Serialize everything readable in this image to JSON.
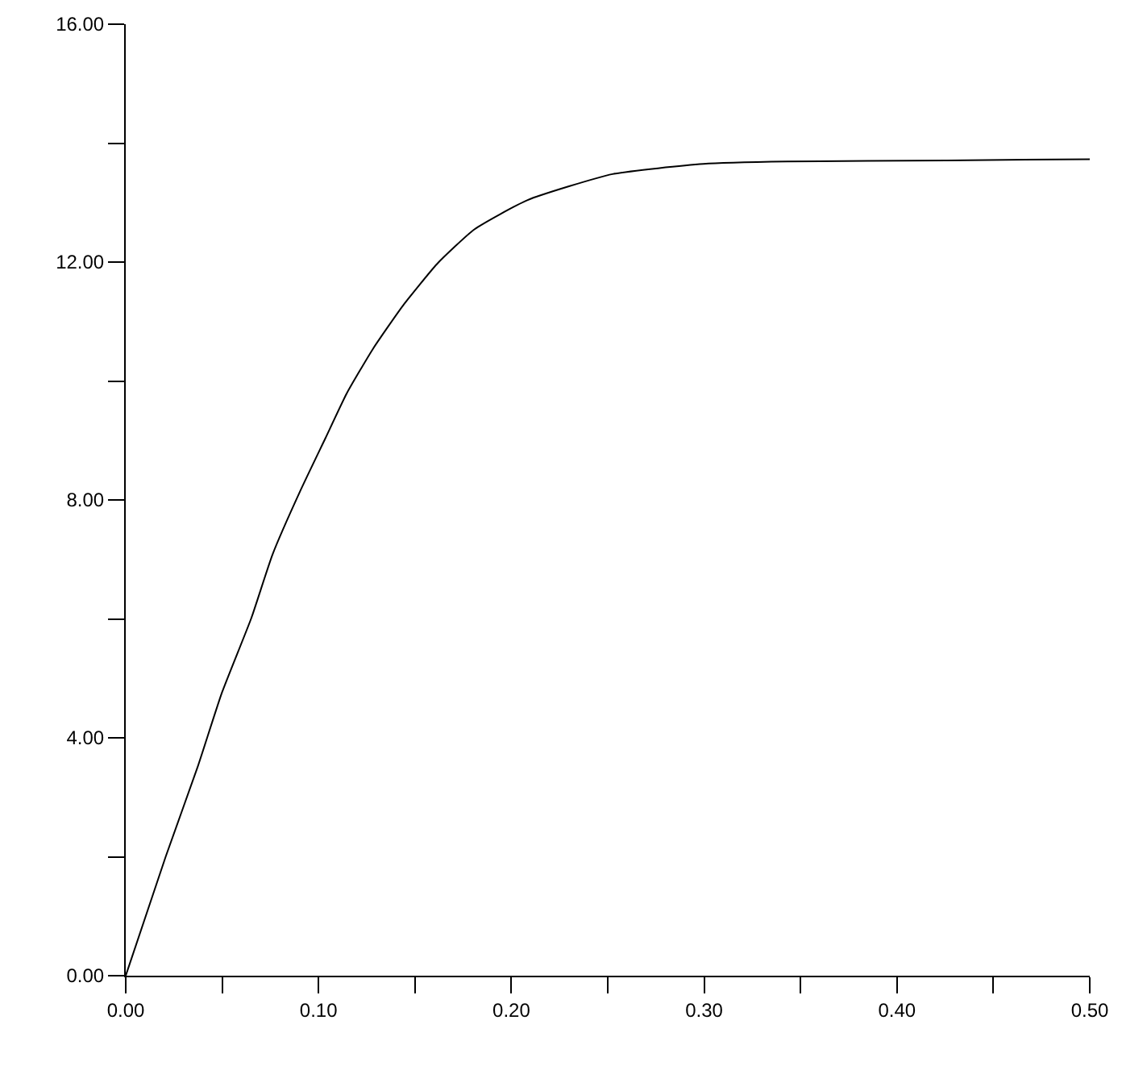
{
  "chart_data": {
    "type": "line",
    "x": [
      0,
      0.0207,
      0.0374,
      0.0499,
      0.0651,
      0.0761,
      0.0905,
      0.1036,
      0.1146,
      0.1284,
      0.1436,
      0.1615,
      0.1808,
      0.2082,
      0.2525,
      0.2997,
      0.343,
      0.426,
      0.5
    ],
    "series": [
      {
        "color": "#000000",
        "values": [
          0,
          2.0,
          3.52,
          4.76,
          6.01,
          7.08,
          8.15,
          9.04,
          9.79,
          10.55,
          11.26,
          11.97,
          12.55,
          13.04,
          13.48,
          13.65,
          13.69,
          13.71,
          13.73
        ]
      }
    ],
    "xlim": [
      0,
      0.5
    ],
    "ylim": [
      0,
      16
    ],
    "xticks": [
      {
        "value": 0,
        "label": "0.00"
      },
      {
        "value": 0.05,
        "label": null
      },
      {
        "value": 0.1,
        "label": "0.10"
      },
      {
        "value": 0.15,
        "label": null
      },
      {
        "value": 0.2,
        "label": "0.20"
      },
      {
        "value": 0.25,
        "label": null
      },
      {
        "value": 0.3,
        "label": "0.30"
      },
      {
        "value": 0.35,
        "label": null
      },
      {
        "value": 0.4,
        "label": "0.40"
      },
      {
        "value": 0.45,
        "label": null
      },
      {
        "value": 0.5,
        "label": "0.50"
      }
    ],
    "yticks": [
      {
        "value": 0,
        "label": "0.00"
      },
      {
        "value": 2,
        "label": null
      },
      {
        "value": 4,
        "label": "4.00"
      },
      {
        "value": 6,
        "label": null
      },
      {
        "value": 8,
        "label": "8.00"
      },
      {
        "value": 10,
        "label": null
      },
      {
        "value": 12,
        "label": "12.00"
      },
      {
        "value": 14,
        "label": null
      },
      {
        "value": 16,
        "label": "16.00"
      }
    ],
    "marker": "none",
    "line_style": "solid"
  }
}
